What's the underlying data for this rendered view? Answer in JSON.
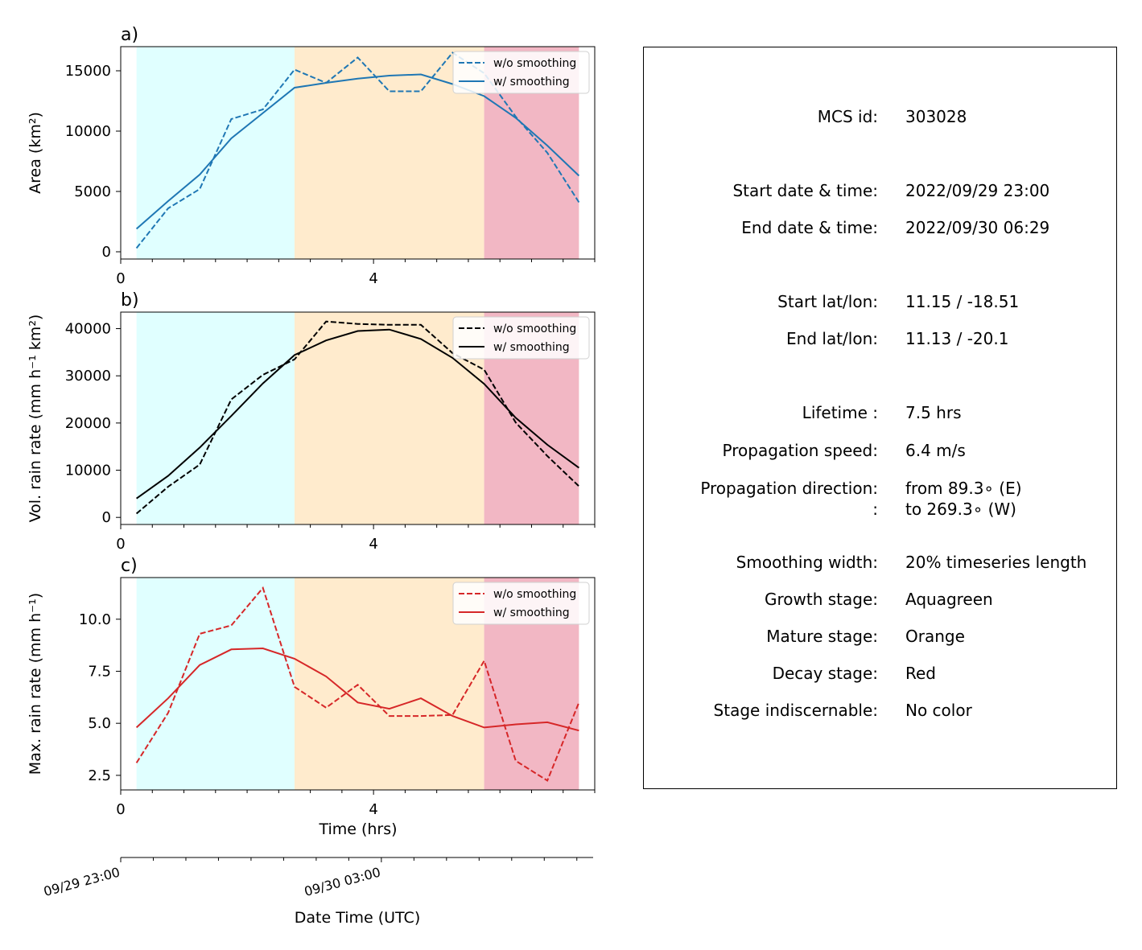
{
  "colors": {
    "growth": "#e0ffff",
    "mature": "#ffebcd",
    "decay": "#f2b7c4",
    "area": "#1f77b4",
    "volrain": "#000000",
    "maxrain": "#d62728"
  },
  "stages": {
    "growth": [
      0.25,
      2.75
    ],
    "mature": [
      2.75,
      5.75
    ],
    "decay": [
      5.75,
      7.25
    ]
  },
  "time_axis": {
    "label": "Time (hrs)",
    "ticks": [
      0,
      4
    ],
    "xlim": [
      0,
      7.5
    ]
  },
  "datetime_axis": {
    "label": "Date Time (UTC)",
    "ticks": [
      {
        "hrs": 0,
        "label": "09/29 23:00"
      },
      {
        "hrs": 4,
        "label": "09/30 03:00"
      }
    ]
  },
  "chart_data": [
    {
      "type": "line",
      "panel_label": "a)",
      "ylabel": "Area  (km²)",
      "ylim": [
        -600,
        17000
      ],
      "yticks": [
        0,
        5000,
        10000,
        15000
      ],
      "legend": "top-right",
      "x": [
        0.25,
        0.75,
        1.25,
        1.75,
        2.25,
        2.75,
        3.25,
        3.75,
        4.25,
        4.75,
        5.25,
        5.75,
        6.25,
        6.75,
        7.25
      ],
      "series": [
        {
          "name": "w/o smoothing",
          "style": "dashed",
          "values": [
            300,
            3600,
            5200,
            11000,
            11800,
            15100,
            14000,
            16100,
            13300,
            13300,
            16500,
            14800,
            11200,
            8200,
            4100
          ]
        },
        {
          "name": "w/ smoothing",
          "style": "solid",
          "values": [
            1900,
            4200,
            6400,
            9400,
            11500,
            13600,
            14000,
            14350,
            14600,
            14700,
            13900,
            12900,
            11100,
            8800,
            6300
          ]
        }
      ]
    },
    {
      "type": "line",
      "panel_label": "b)",
      "ylabel": "Vol. rain rate (mm h⁻¹ km²)",
      "ylim": [
        -1500,
        43500
      ],
      "yticks": [
        0,
        10000,
        20000,
        30000,
        40000
      ],
      "legend": "top-right",
      "x": [
        0.25,
        0.75,
        1.25,
        1.75,
        2.25,
        2.75,
        3.25,
        3.75,
        4.25,
        4.75,
        5.25,
        5.75,
        6.25,
        6.75,
        7.25
      ],
      "series": [
        {
          "name": "w/o smoothing",
          "style": "dashed",
          "values": [
            800,
            6500,
            11200,
            25000,
            30200,
            33500,
            41500,
            41000,
            40800,
            40800,
            34800,
            31300,
            20100,
            13000,
            6600
          ]
        },
        {
          "name": "w/ smoothing",
          "style": "solid",
          "values": [
            4000,
            8800,
            14800,
            21500,
            28400,
            34400,
            37500,
            39500,
            39800,
            37800,
            33800,
            28300,
            21100,
            15400,
            10500
          ]
        }
      ]
    },
    {
      "type": "line",
      "panel_label": "c)",
      "ylabel": "Max. rain rate  (mm h⁻¹)",
      "ylim": [
        1.8,
        12.0
      ],
      "yticks": [
        2.5,
        5.0,
        7.5,
        10.0
      ],
      "yticklabels": [
        "2.5",
        "5.0",
        "7.5",
        "10.0"
      ],
      "legend": "top-right",
      "x": [
        0.25,
        0.75,
        1.25,
        1.75,
        2.25,
        2.75,
        3.25,
        3.75,
        4.25,
        4.75,
        5.25,
        5.75,
        6.25,
        6.75,
        7.25
      ],
      "series": [
        {
          "name": "w/o smoothing",
          "style": "dashed",
          "values": [
            3.1,
            5.5,
            9.3,
            9.7,
            11.5,
            6.75,
            5.75,
            6.85,
            5.35,
            5.35,
            5.4,
            8.0,
            3.2,
            2.25,
            6.0
          ]
        },
        {
          "name": "w/ smoothing",
          "style": "solid",
          "values": [
            4.8,
            6.2,
            7.8,
            8.55,
            8.6,
            8.1,
            7.25,
            6.0,
            5.7,
            6.2,
            5.35,
            4.8,
            4.95,
            5.05,
            4.65
          ]
        }
      ]
    }
  ],
  "info": [
    {
      "key": "MCS id:",
      "value": "303028"
    },
    {
      "key": "Start date & time:",
      "value": "2022/09/29 23:00"
    },
    {
      "key": "End date & time:",
      "value": "2022/09/30 06:29"
    },
    {
      "key": "Start lat/lon:",
      "value": "11.15 / -18.51"
    },
    {
      "key": "End lat/lon:",
      "value": "11.13 / -20.1"
    },
    {
      "key": "Lifetime :",
      "value": "7.5 hrs"
    },
    {
      "key": "Propagation speed:",
      "value": "6.4 m/s"
    },
    {
      "key": "Propagation direction:",
      "value": "from  89.3∘ (E)"
    },
    {
      "key": ":",
      "value": "to   269.3∘ (W)"
    },
    {
      "key": "Smoothing width:",
      "value": "20% timeseries length"
    },
    {
      "key": "Growth stage:",
      "value": "Aquagreen"
    },
    {
      "key": "Mature stage:",
      "value": "Orange"
    },
    {
      "key": "Decay stage:",
      "value": "Red"
    },
    {
      "key": "Stage indiscernable:",
      "value": "No color"
    }
  ]
}
